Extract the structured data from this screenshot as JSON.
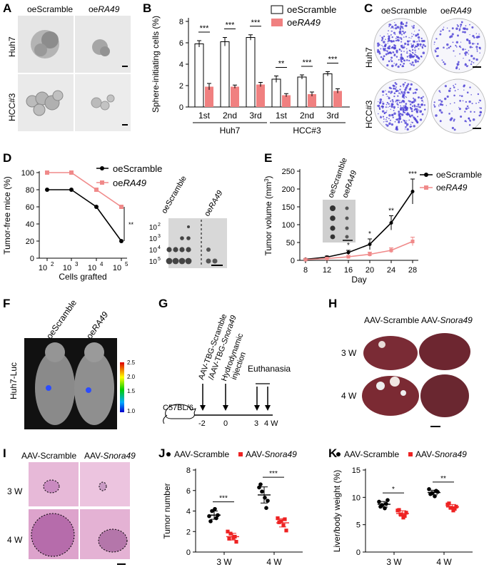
{
  "panels": {
    "A": "A",
    "B": "B",
    "C": "C",
    "D": "D",
    "E": "E",
    "F": "F",
    "G": "G",
    "H": "H",
    "I": "I",
    "J": "J",
    "K": "K"
  },
  "labels": {
    "oeScramble": "oeScramble",
    "oe": "oe",
    "RA49": "RA49",
    "huh7": "Huh7",
    "hcc3": "HCC#3",
    "huh7luc": "Huh7-Luc",
    "aavScramble": "AAV-Scramble",
    "aav": "AAV-",
    "snora49": "Snora49",
    "w3": "3 W",
    "w4": "4 W"
  },
  "panelB": {
    "ylabel": "Sphere-initiating cells (%)",
    "legend": [
      "oeScramble",
      "oeRA49"
    ],
    "groups": [
      "Huh7",
      "HCC#3"
    ],
    "categories": [
      "1st",
      "2nd",
      "3rd",
      "1st",
      "2nd",
      "3rd"
    ],
    "yticks": [
      "0",
      "2",
      "4",
      "6",
      "8"
    ],
    "sig": [
      "***",
      "***",
      "***",
      "**",
      "***",
      "***"
    ]
  },
  "panelD": {
    "ylabel": "Tumor-free mice (%)",
    "xlabel": "Cells grafted",
    "xticks": [
      "10",
      "10",
      "10",
      "10"
    ],
    "xexp": [
      "2",
      "3",
      "4",
      "5"
    ],
    "yticks": [
      "0",
      "20",
      "40",
      "60",
      "80",
      "100"
    ],
    "sig": "**",
    "inset_rows": [
      "10",
      "10",
      "10",
      "10"
    ],
    "inset_exp": [
      "2",
      "3",
      "4",
      "5"
    ]
  },
  "panelE": {
    "ylabel": "Tumor volume (mm",
    "ylabel_sup": "3",
    "ylabel_end": ")",
    "xlabel": "Day",
    "xticks": [
      "8",
      "12",
      "16",
      "20",
      "24",
      "28"
    ],
    "yticks": [
      "0",
      "50",
      "100",
      "150",
      "200",
      "250"
    ],
    "sig": [
      "*",
      "*",
      "**",
      "***"
    ]
  },
  "panelF": {
    "scale": [
      "2.5",
      "2.0",
      "1.5",
      "1.0"
    ]
  },
  "panelG": {
    "mouse": "C57BL/6",
    "event1a": "AAV-TBG-Scramble",
    "event1b": "/AAV-TBG-",
    "event1c": "Snora49",
    "event2a": "Hydrodynamic",
    "event2b": "injection",
    "euth": "Euthanasia",
    "ticks": [
      "-2",
      "0",
      "3",
      "4 W"
    ]
  },
  "panelJ": {
    "ylabel": "Tumor number",
    "yticks": [
      "0",
      "2",
      "4",
      "6",
      "8"
    ],
    "xcats": [
      "3 W",
      "4 W"
    ],
    "sig": [
      "***",
      "***"
    ]
  },
  "panelK": {
    "ylabel": "Liver/body weight (%)",
    "yticks": [
      "0",
      "5",
      "10",
      "15"
    ],
    "xcats": [
      "3 W",
      "4 W"
    ],
    "sig": [
      "*",
      "**"
    ]
  },
  "chart_data": [
    {
      "type": "bar",
      "panel": "B",
      "ylabel": "Sphere-initiating cells (%)",
      "ylim": [
        0,
        8
      ],
      "categories": [
        "1st",
        "2nd",
        "3rd",
        "1st",
        "2nd",
        "3rd"
      ],
      "groups": [
        "Huh7",
        "Huh7",
        "Huh7",
        "HCC#3",
        "HCC#3",
        "HCC#3"
      ],
      "series": [
        {
          "name": "oeScramble",
          "values": [
            5.9,
            6.1,
            6.5,
            2.6,
            2.8,
            3.1
          ],
          "errors": [
            0.3,
            0.4,
            0.25,
            0.3,
            0.2,
            0.2
          ],
          "color": "#ffffff"
        },
        {
          "name": "oeRA49",
          "values": [
            1.9,
            1.9,
            2.1,
            1.1,
            1.2,
            1.5
          ],
          "errors": [
            0.3,
            0.15,
            0.2,
            0.15,
            0.2,
            0.2
          ],
          "color": "#f08080"
        }
      ]
    },
    {
      "type": "line",
      "panel": "D",
      "ylabel": "Tumor-free mice (%)",
      "xlabel": "Cells grafted",
      "ylim": [
        0,
        100
      ],
      "x": [
        "10^2",
        "10^3",
        "10^4",
        "10^5"
      ],
      "series": [
        {
          "name": "oeScramble",
          "values": [
            80,
            80,
            60,
            20
          ],
          "color": "#000000"
        },
        {
          "name": "oeRA49",
          "values": [
            100,
            100,
            80,
            60
          ],
          "color": "#f08a8a"
        }
      ]
    },
    {
      "type": "line",
      "panel": "E",
      "ylabel": "Tumor volume (mm3)",
      "xlabel": "Day",
      "ylim": [
        0,
        250
      ],
      "x": [
        8,
        12,
        16,
        20,
        24,
        28
      ],
      "series": [
        {
          "name": "oeScramble",
          "values": [
            3,
            9,
            22,
            45,
            105,
            193
          ],
          "errors": [
            1,
            3,
            6,
            15,
            20,
            35
          ],
          "color": "#000000"
        },
        {
          "name": "oeRA49",
          "values": [
            2,
            5,
            10,
            17,
            28,
            53
          ],
          "errors": [
            1,
            2,
            4,
            6,
            7,
            12
          ],
          "color": "#f08a8a"
        }
      ]
    },
    {
      "type": "scatter",
      "panel": "J",
      "ylabel": "Tumor number",
      "ylim": [
        0,
        8
      ],
      "categories": [
        "3 W",
        "4 W"
      ],
      "series": [
        {
          "name": "AAV-Scramble",
          "values": [
            [
              3.5,
              4.0,
              4.2,
              3.6,
              3.0,
              3.3
            ],
            [
              6.3,
              5.9,
              5.3,
              5.0,
              6.6,
              4.3
            ]
          ],
          "color": "#000000"
        },
        {
          "name": "AAV-Snora49",
          "values": [
            [
              2.0,
              1.8,
              1.4,
              1.0,
              1.3,
              1.5
            ],
            [
              3.3,
              3.0,
              2.6,
              2.1,
              2.9,
              3.2
            ]
          ],
          "color": "#e22"
        }
      ]
    },
    {
      "type": "scatter",
      "panel": "K",
      "ylabel": "Liver/body weight (%)",
      "ylim": [
        0,
        15
      ],
      "categories": [
        "3 W",
        "4 W"
      ],
      "series": [
        {
          "name": "AAV-Scramble",
          "values": [
            [
              9.2,
              8.6,
              8.0,
              9.5,
              8.3,
              8.8
            ],
            [
              11.5,
              10.8,
              10.2,
              11.0,
              10.6,
              11.2
            ]
          ],
          "color": "#000000"
        },
        {
          "name": "AAV-Snora49",
          "values": [
            [
              7.6,
              6.9,
              6.3,
              7.2,
              7.7,
              6.6
            ],
            [
              8.7,
              8.1,
              7.6,
              8.3,
              8.9,
              7.9
            ]
          ],
          "color": "#e22"
        }
      ]
    }
  ]
}
